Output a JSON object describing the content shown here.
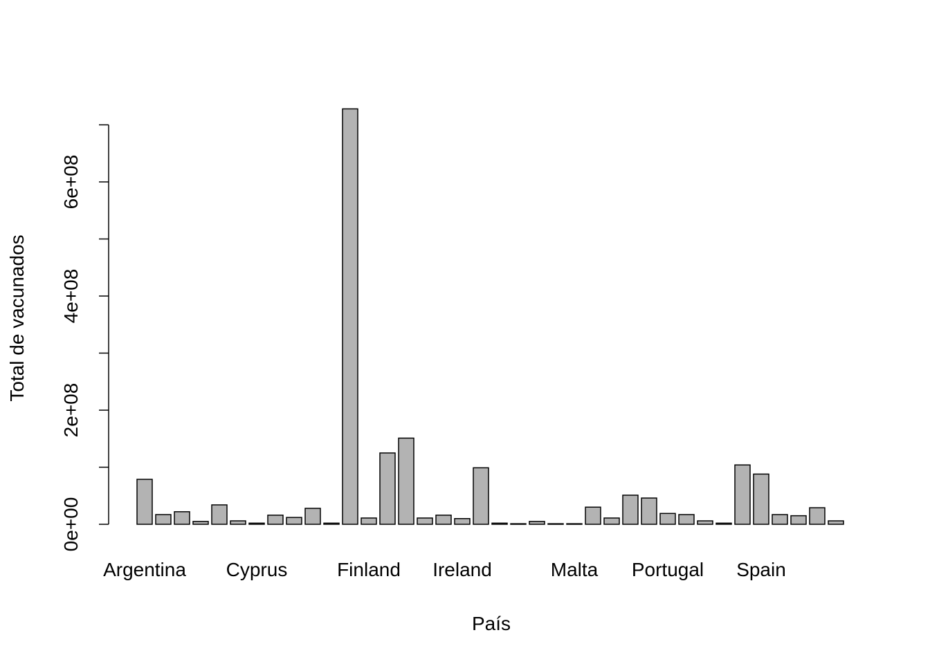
{
  "chart_data": {
    "type": "bar",
    "x_label": "País",
    "y_label": "Total de vacunados",
    "categories": [
      "Argentina",
      null,
      null,
      null,
      null,
      null,
      "Cyprus",
      null,
      null,
      null,
      null,
      null,
      "Finland",
      null,
      null,
      null,
      null,
      "Ireland",
      null,
      null,
      null,
      null,
      null,
      "Malta",
      null,
      null,
      null,
      null,
      "Portugal",
      null,
      null,
      null,
      null,
      "Spain",
      null,
      null,
      null,
      null
    ],
    "values": [
      78800000,
      17000000,
      22000000,
      5000000,
      34000000,
      6000000,
      2000000,
      16000000,
      12000000,
      28000000,
      2000000,
      728000000,
      11000000,
      125000000,
      151000000,
      11000000,
      16000000,
      10000000,
      99000000,
      2000000,
      1000000,
      5000000,
      1000000,
      1000000,
      30000000,
      11000000,
      51000000,
      46000000,
      19000000,
      17000000,
      6000000,
      2000000,
      104000000,
      88000000,
      17000000,
      15000000,
      29000000,
      6000000
    ],
    "color": "#b3b3b3",
    "ylim": [
      0,
      700000000
    ],
    "yticks": [
      {
        "value": 0,
        "label": "0e+00"
      },
      {
        "value": 100000000,
        "label": null
      },
      {
        "value": 200000000,
        "label": "2e+08"
      },
      {
        "value": 300000000,
        "label": null
      },
      {
        "value": 400000000,
        "label": "4e+08"
      },
      {
        "value": 500000000,
        "label": null
      },
      {
        "value": 600000000,
        "label": "6e+08"
      },
      {
        "value": 700000000,
        "label": null
      }
    ]
  }
}
